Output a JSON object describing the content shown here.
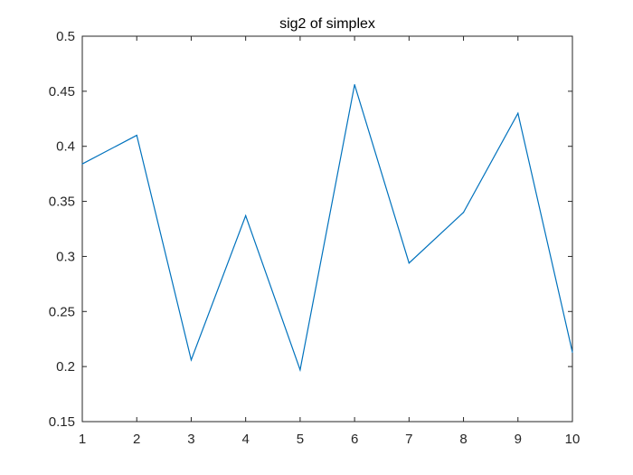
{
  "chart_data": {
    "type": "line",
    "title": "sig2 of simplex",
    "xlabel": "",
    "ylabel": "",
    "x": [
      1,
      2,
      3,
      4,
      5,
      6,
      7,
      8,
      9,
      10
    ],
    "series": [
      {
        "values": [
          0.384,
          0.41,
          0.206,
          0.337,
          0.197,
          0.456,
          0.294,
          0.34,
          0.43,
          0.213
        ],
        "color": "#0072BD"
      }
    ],
    "xlim": [
      1,
      10
    ],
    "ylim": [
      0.15,
      0.5
    ],
    "xticks": [
      "1",
      "2",
      "3",
      "4",
      "5",
      "6",
      "7",
      "8",
      "9",
      "10"
    ],
    "yticks": [
      "0.15",
      "0.2",
      "0.25",
      "0.3",
      "0.35",
      "0.4",
      "0.45",
      "0.5"
    ],
    "grid": false,
    "legend": "none",
    "axis_color": "#262626",
    "background": "#ffffff"
  }
}
